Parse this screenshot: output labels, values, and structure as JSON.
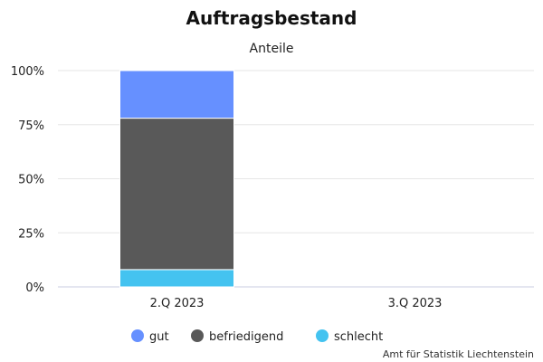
{
  "chart_data": {
    "type": "bar",
    "stacked": true,
    "title": "Auftragsbestand",
    "subtitle": "Anteile",
    "categories": [
      "2.Q 2023",
      "3.Q 2023"
    ],
    "series": [
      {
        "name": "gut",
        "values": [
          22,
          null
        ],
        "color": "#6690ff"
      },
      {
        "name": "befriedigend",
        "values": [
          70,
          null
        ],
        "color": "#595959"
      },
      {
        "name": "schlecht",
        "values": [
          8,
          null
        ],
        "color": "#44c3f0"
      }
    ],
    "ylim": [
      0,
      100
    ],
    "yticks": [
      "0%",
      "25%",
      "50%",
      "75%",
      "100%"
    ],
    "ytick_values": [
      0,
      25,
      50,
      75,
      100
    ],
    "grid": true,
    "legend_position": "bottom-center",
    "credit": "Amt für Statistik Liechtenstein"
  }
}
